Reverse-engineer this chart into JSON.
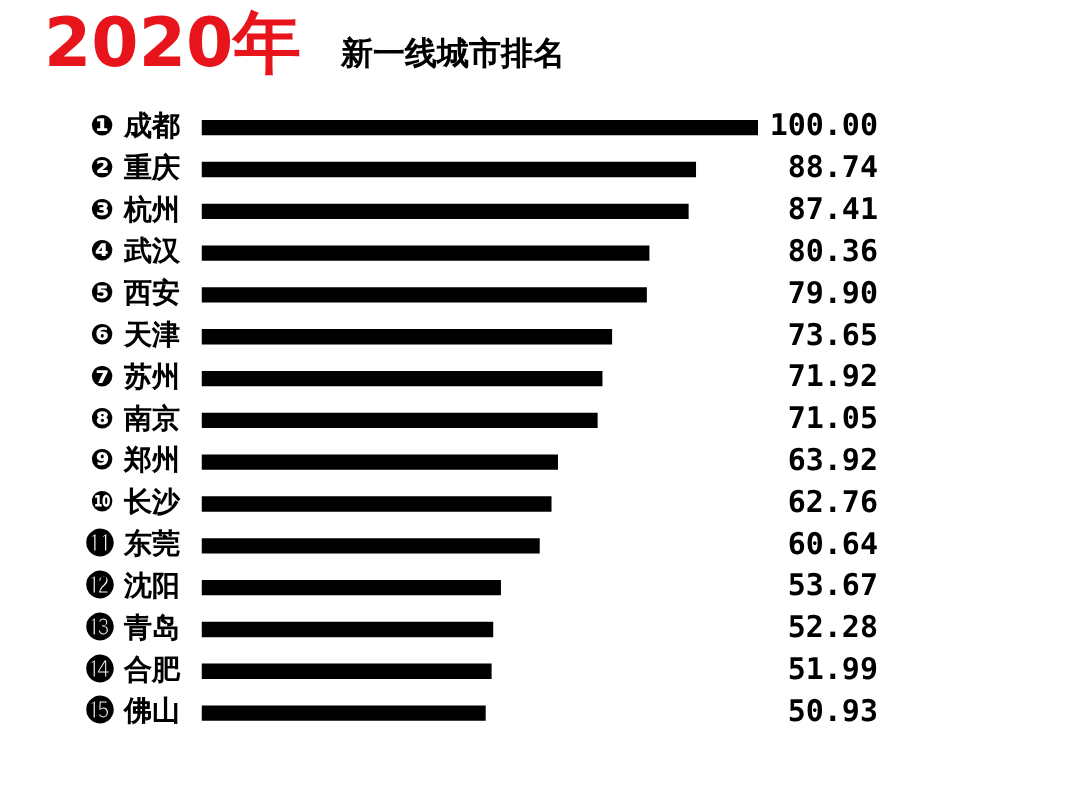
{
  "chart_data": {
    "type": "bar",
    "orientation": "horizontal",
    "title": "2020年",
    "subtitle": "新一线城市排名",
    "categories": [
      "❶ 成都",
      "❷ 重庆",
      "❸ 杭州",
      "❹ 武汉",
      "❺ 西安",
      "❻ 天津",
      "❼ 苏州",
      "❽ 南京",
      "❾ 郑州",
      "❿ 长沙",
      "⓫ 东莞",
      "⓬ 沈阳",
      "⓭ 青岛",
      "⓮ 合肥",
      "⓯ 佛山"
    ],
    "values": [
      100.0,
      88.74,
      87.41,
      80.36,
      79.9,
      73.65,
      71.92,
      71.05,
      63.92,
      62.76,
      60.64,
      53.67,
      52.28,
      51.99,
      50.93
    ],
    "value_labels": [
      "100.00",
      "88.74",
      "87.41",
      "80.36",
      "79.90",
      "73.65",
      "71.92",
      "71.05",
      "63.92",
      "62.76",
      "60.64",
      "53.67",
      "52.28",
      "51.99",
      "50.93"
    ],
    "color": "#000000",
    "xlim": [
      0,
      100
    ],
    "tick_labels": "y",
    "legend": false
  }
}
